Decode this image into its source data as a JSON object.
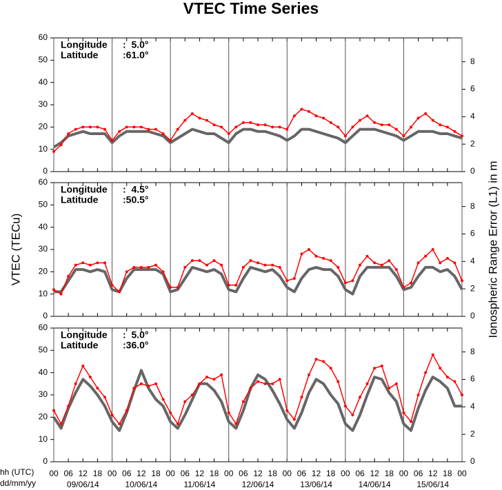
{
  "chart_data": [
    {
      "type": "line",
      "title": "VTEC Time Series",
      "annotations": [
        {
          "label": "Longitude",
          "value": ":  5.0°"
        },
        {
          "label": "Latitude",
          "value": ":61.0°"
        }
      ],
      "x": [
        0,
        3,
        6,
        9,
        12,
        15,
        18,
        21,
        24,
        27,
        30,
        33,
        36,
        39,
        42,
        45,
        48,
        51,
        54,
        57,
        60,
        63,
        66,
        69,
        72,
        75,
        78,
        81,
        84,
        87,
        90,
        93,
        96,
        99,
        102,
        105,
        108,
        111,
        114,
        117,
        120,
        123,
        126,
        129,
        132,
        135,
        138,
        141,
        144,
        147,
        150,
        153,
        156,
        159,
        162,
        165,
        168
      ],
      "xlim": [
        0,
        168
      ],
      "ylim": [
        0,
        60
      ],
      "yticks": [
        0,
        10,
        20,
        30,
        40,
        50,
        60
      ],
      "y2lim": [
        0,
        9.74
      ],
      "y2ticks": [
        0,
        2,
        4,
        6,
        8
      ],
      "series": [
        {
          "color": "#ff0000",
          "values": [
            9,
            12,
            17,
            19,
            20,
            20,
            20,
            19,
            14,
            18,
            20,
            20,
            20,
            19,
            19,
            17,
            14,
            19,
            23,
            26,
            24,
            23,
            21,
            20,
            17,
            20,
            22,
            22,
            21,
            21,
            20,
            20,
            19,
            25,
            28,
            27,
            25,
            24,
            22,
            20,
            16,
            20,
            23,
            25,
            22,
            21,
            21,
            19,
            16,
            20,
            24,
            26,
            23,
            21,
            20,
            18,
            16
          ]
        },
        {
          "color": "#666666",
          "values": [
            11,
            13,
            16,
            17,
            18,
            17,
            17,
            17,
            13,
            16,
            18,
            18,
            18,
            18,
            17,
            16,
            13,
            15,
            17,
            19,
            18,
            17,
            17,
            15,
            13,
            17,
            19,
            19,
            18,
            18,
            17,
            16,
            14,
            16,
            19,
            19,
            18,
            17,
            16,
            15,
            13,
            16,
            19,
            19,
            19,
            18,
            17,
            16,
            14,
            16,
            18,
            18,
            18,
            17,
            17,
            16,
            15
          ]
        }
      ]
    },
    {
      "type": "line",
      "ylabel": "VTEC (TECu)",
      "y2label": "Ionospheric Range Error (L1) in m",
      "annotations": [
        {
          "label": "Longitude",
          "value": ":  4.5°"
        },
        {
          "label": "Latitude",
          "value": ":50.5°"
        }
      ],
      "x": [
        0,
        3,
        6,
        9,
        12,
        15,
        18,
        21,
        24,
        27,
        30,
        33,
        36,
        39,
        42,
        45,
        48,
        51,
        54,
        57,
        60,
        63,
        66,
        69,
        72,
        75,
        78,
        81,
        84,
        87,
        90,
        93,
        96,
        99,
        102,
        105,
        108,
        111,
        114,
        117,
        120,
        123,
        126,
        129,
        132,
        135,
        138,
        141,
        144,
        147,
        150,
        153,
        156,
        159,
        162,
        165,
        168
      ],
      "xlim": [
        0,
        168
      ],
      "ylim": [
        0,
        60
      ],
      "yticks": [
        0,
        10,
        20,
        30,
        40,
        50,
        60
      ],
      "y2lim": [
        0,
        9.74
      ],
      "y2ticks": [
        0,
        2,
        4,
        6,
        8
      ],
      "series": [
        {
          "color": "#ff0000",
          "values": [
            12,
            10,
            18,
            23,
            24,
            23,
            24,
            24,
            14,
            11,
            20,
            22,
            22,
            22,
            23,
            20,
            13,
            13,
            22,
            25,
            25,
            23,
            25,
            23,
            14,
            14,
            22,
            25,
            24,
            23,
            23,
            22,
            16,
            17,
            28,
            30,
            27,
            26,
            25,
            22,
            15,
            16,
            23,
            27,
            24,
            23,
            25,
            21,
            13,
            15,
            24,
            27,
            30,
            24,
            26,
            24,
            16
          ]
        },
        {
          "color": "#666666",
          "values": [
            11,
            11,
            16,
            21,
            21,
            20,
            21,
            20,
            12,
            11,
            17,
            21,
            21,
            21,
            21,
            19,
            11,
            12,
            17,
            22,
            21,
            20,
            21,
            19,
            12,
            11,
            17,
            22,
            21,
            20,
            21,
            18,
            13,
            11,
            17,
            21,
            22,
            21,
            21,
            18,
            12,
            10,
            18,
            22,
            22,
            22,
            22,
            18,
            12,
            13,
            18,
            22,
            22,
            20,
            21,
            18,
            12
          ]
        }
      ]
    },
    {
      "type": "line",
      "xlabel": [
        "hh (UTC)",
        "dd/mm/yy"
      ],
      "annotations": [
        {
          "label": "Longitude",
          "value": ":  5.0°"
        },
        {
          "label": "Latitude",
          "value": ":36.0°"
        }
      ],
      "x": [
        0,
        3,
        6,
        9,
        12,
        15,
        18,
        21,
        24,
        27,
        30,
        33,
        36,
        39,
        42,
        45,
        48,
        51,
        54,
        57,
        60,
        63,
        66,
        69,
        72,
        75,
        78,
        81,
        84,
        87,
        90,
        93,
        96,
        99,
        102,
        105,
        108,
        111,
        114,
        117,
        120,
        123,
        126,
        129,
        132,
        135,
        138,
        141,
        144,
        147,
        150,
        153,
        156,
        159,
        162,
        165,
        168
      ],
      "xlim": [
        0,
        168
      ],
      "xticks": [
        {
          "value": 0,
          "label": "00"
        },
        {
          "value": 6,
          "label": "06"
        },
        {
          "value": 12,
          "label": "12"
        },
        {
          "value": 18,
          "label": "18"
        },
        {
          "value": 24,
          "label": "00"
        },
        {
          "value": 30,
          "label": "06"
        },
        {
          "value": 36,
          "label": "12"
        },
        {
          "value": 42,
          "label": "18"
        },
        {
          "value": 48,
          "label": "00"
        },
        {
          "value": 54,
          "label": "06"
        },
        {
          "value": 60,
          "label": "12"
        },
        {
          "value": 66,
          "label": "18"
        },
        {
          "value": 72,
          "label": "00"
        },
        {
          "value": 78,
          "label": "06"
        },
        {
          "value": 84,
          "label": "12"
        },
        {
          "value": 90,
          "label": "18"
        },
        {
          "value": 96,
          "label": "00"
        },
        {
          "value": 102,
          "label": "06"
        },
        {
          "value": 108,
          "label": "12"
        },
        {
          "value": 114,
          "label": "18"
        },
        {
          "value": 120,
          "label": "00"
        },
        {
          "value": 126,
          "label": "06"
        },
        {
          "value": 132,
          "label": "12"
        },
        {
          "value": 138,
          "label": "18"
        },
        {
          "value": 144,
          "label": "00"
        },
        {
          "value": 150,
          "label": "06"
        },
        {
          "value": 156,
          "label": "12"
        },
        {
          "value": 162,
          "label": "18"
        },
        {
          "value": 168,
          "label": "00"
        }
      ],
      "dates": [
        "09/06/14",
        "10/06/14",
        "11/06/14",
        "12/06/14",
        "13/06/14",
        "14/06/14",
        "15/06/14"
      ],
      "ylim": [
        0,
        60
      ],
      "yticks": [
        0,
        10,
        20,
        30,
        40,
        50,
        60
      ],
      "y2lim": [
        0,
        9.74
      ],
      "y2ticks": [
        0,
        2,
        4,
        6,
        8
      ],
      "series": [
        {
          "color": "#ff0000",
          "values": [
            23,
            17,
            25,
            35,
            43,
            38,
            33,
            29,
            21,
            17,
            23,
            33,
            35,
            34,
            35,
            28,
            22,
            17,
            27,
            30,
            35,
            38,
            37,
            39,
            22,
            17,
            27,
            33,
            36,
            35,
            35,
            37,
            23,
            19,
            29,
            39,
            46,
            45,
            42,
            36,
            25,
            21,
            29,
            35,
            42,
            43,
            33,
            35,
            22,
            18,
            30,
            40,
            48,
            42,
            38,
            36,
            30
          ]
        },
        {
          "color": "#666666",
          "values": [
            20,
            15,
            24,
            31,
            37,
            34,
            30,
            25,
            18,
            14,
            22,
            32,
            41,
            33,
            28,
            25,
            18,
            15,
            21,
            28,
            35,
            35,
            32,
            27,
            18,
            15,
            23,
            33,
            39,
            37,
            32,
            26,
            19,
            15,
            22,
            31,
            37,
            35,
            30,
            26,
            17,
            14,
            21,
            30,
            38,
            37,
            31,
            27,
            17,
            14,
            24,
            32,
            38,
            36,
            33,
            25,
            25
          ]
        }
      ]
    }
  ]
}
